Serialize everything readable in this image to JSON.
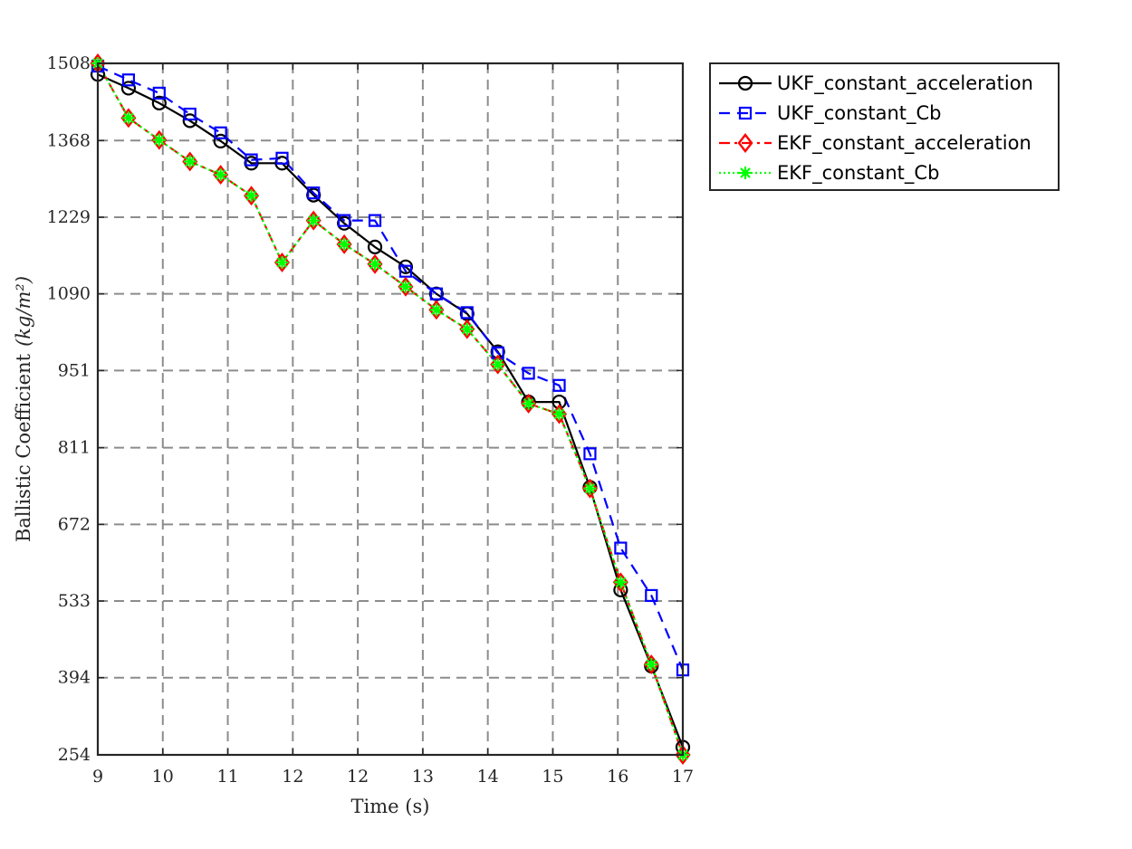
{
  "chart_data": {
    "type": "line",
    "xlabel": "Time (s)",
    "ylabel": "Ballistic Coefficient",
    "ylabel_unit": "(kg/m²)",
    "xlim": [
      9,
      17
    ],
    "ylim": [
      254,
      1508
    ],
    "x_tick_labels": [
      "9",
      "10",
      "11",
      "12",
      "12",
      "13",
      "14",
      "15",
      "16",
      "17"
    ],
    "y_ticks": [
      254,
      394,
      533,
      672,
      811,
      951,
      1090,
      1229,
      1368,
      1508
    ],
    "grid": true,
    "legend_position": "outside top-right",
    "series": [
      {
        "name": "UKF_constant_acceleration",
        "color": "#000000",
        "line": "solid",
        "marker": "circle",
        "x": [
          9.0,
          9.42,
          9.84,
          10.26,
          10.68,
          11.1,
          11.52,
          11.95,
          12.37,
          12.79,
          13.21,
          13.63,
          14.05,
          14.47,
          14.89,
          15.31,
          15.73,
          16.15,
          16.57,
          17.0
        ],
        "y": [
          1488,
          1463,
          1436,
          1404,
          1367,
          1327,
          1327,
          1269,
          1218,
          1175,
          1139,
          1090,
          1054,
          985,
          894,
          894,
          739,
          553,
          415,
          268
        ]
      },
      {
        "name": "UKF_constant_Cb",
        "color": "#0000ff",
        "line": "dashed",
        "marker": "square",
        "x": [
          9.0,
          9.42,
          9.84,
          10.26,
          10.68,
          11.1,
          11.52,
          11.95,
          12.37,
          12.79,
          13.21,
          13.63,
          14.05,
          14.47,
          14.89,
          15.31,
          15.73,
          16.15,
          16.57,
          17.0
        ],
        "y": [
          1503,
          1478,
          1454,
          1416,
          1382,
          1333,
          1336,
          1273,
          1223,
          1223,
          1131,
          1090,
          1056,
          983,
          946,
          924,
          800,
          629,
          543,
          408
        ]
      },
      {
        "name": "EKF_constant_acceleration",
        "color": "#ff0000",
        "line": "dashdot",
        "marker": "diamond",
        "x": [
          9.0,
          9.42,
          9.84,
          10.26,
          10.68,
          11.1,
          11.52,
          11.95,
          12.37,
          12.79,
          13.21,
          13.63,
          14.05,
          14.47,
          14.89,
          15.31,
          15.73,
          16.15,
          16.57,
          17.0
        ],
        "y": [
          1508,
          1409,
          1369,
          1330,
          1306,
          1268,
          1147,
          1223,
          1180,
          1144,
          1103,
          1061,
          1026,
          962,
          891,
          872,
          737,
          567,
          418,
          254
        ]
      },
      {
        "name": "EKF_constant_Cb",
        "color": "#00ff00",
        "line": "dotted",
        "marker": "asterisk",
        "x": [
          9.0,
          9.42,
          9.84,
          10.26,
          10.68,
          11.1,
          11.52,
          11.95,
          12.37,
          12.79,
          13.21,
          13.63,
          14.05,
          14.47,
          14.89,
          15.31,
          15.73,
          16.15,
          16.57,
          17.0
        ],
        "y": [
          1508,
          1409,
          1369,
          1330,
          1306,
          1268,
          1147,
          1223,
          1180,
          1144,
          1103,
          1061,
          1026,
          962,
          891,
          872,
          737,
          567,
          418,
          254
        ]
      }
    ]
  }
}
